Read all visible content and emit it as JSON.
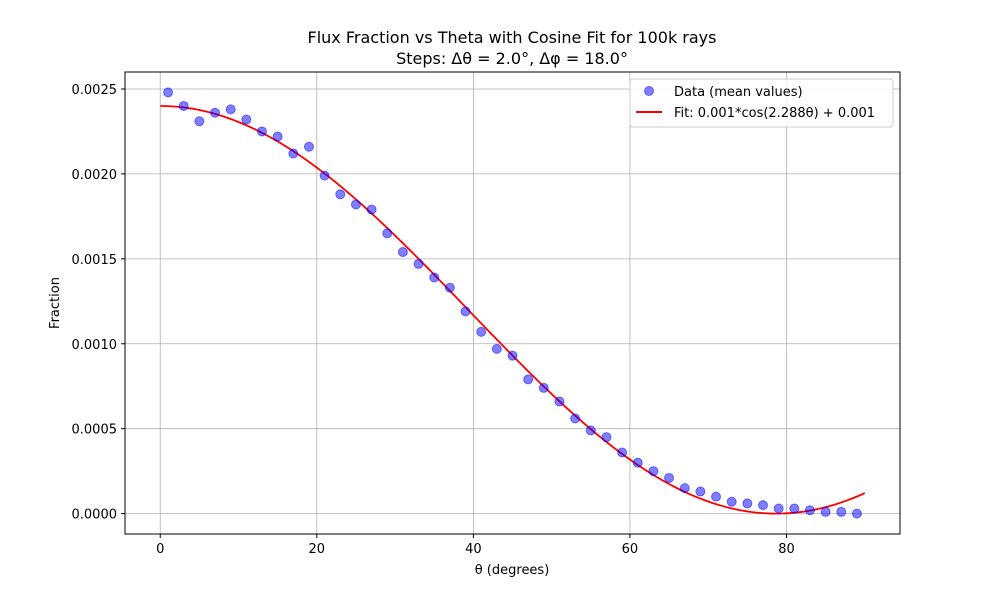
{
  "chart_data": {
    "type": "scatter",
    "title": "Flux Fraction vs Theta with Cosine Fit for 100k rays",
    "subtitle": "Steps: Δθ = 2.0°, Δφ = 18.0°",
    "xlabel": "θ (degrees)",
    "ylabel": "Fraction",
    "xlim": [
      -4.5,
      94.5
    ],
    "ylim": [
      -0.00012,
      0.0026
    ],
    "xticks": [
      0,
      20,
      40,
      60,
      80
    ],
    "xtick_labels": [
      "0",
      "20",
      "40",
      "60",
      "80"
    ],
    "yticks": [
      0.0,
      0.0005,
      0.001,
      0.0015,
      0.002,
      0.0025
    ],
    "ytick_labels": [
      "0.0000",
      "0.0005",
      "0.0010",
      "0.0015",
      "0.0020",
      "0.0025"
    ],
    "grid": true,
    "legend": {
      "placement": "upper-right"
    },
    "series": [
      {
        "name": "Data (mean values)",
        "kind": "scatter",
        "color": "#0000ff",
        "x": [
          1,
          3,
          5,
          7,
          9,
          11,
          13,
          15,
          17,
          19,
          21,
          23,
          25,
          27,
          29,
          31,
          33,
          35,
          37,
          39,
          41,
          43,
          45,
          47,
          49,
          51,
          53,
          55,
          57,
          59,
          61,
          63,
          65,
          67,
          69,
          71,
          73,
          75,
          77,
          79,
          81,
          83,
          85,
          87,
          89
        ],
        "y": [
          0.00248,
          0.0024,
          0.00231,
          0.00236,
          0.00238,
          0.00232,
          0.00225,
          0.00222,
          0.00212,
          0.00216,
          0.00199,
          0.00188,
          0.00182,
          0.00179,
          0.00165,
          0.00154,
          0.00147,
          0.00139,
          0.00133,
          0.00119,
          0.00107,
          0.00097,
          0.00093,
          0.00079,
          0.00074,
          0.00066,
          0.00056,
          0.00049,
          0.00045,
          0.00036,
          0.0003,
          0.00025,
          0.00021,
          0.00015,
          0.00013,
          0.0001,
          7e-05,
          6e-05,
          5e-05,
          3e-05,
          3e-05,
          2e-05,
          1e-05,
          1e-05,
          0.0
        ]
      },
      {
        "name": "Fit: 0.001*cos(2.288θ) + 0.001",
        "kind": "line",
        "color": "#ff0000",
        "function": {
          "amplitude": 0.0012,
          "frequency": 2.288,
          "offset": 0.0012,
          "x_range": [
            0,
            90
          ]
        }
      }
    ]
  }
}
